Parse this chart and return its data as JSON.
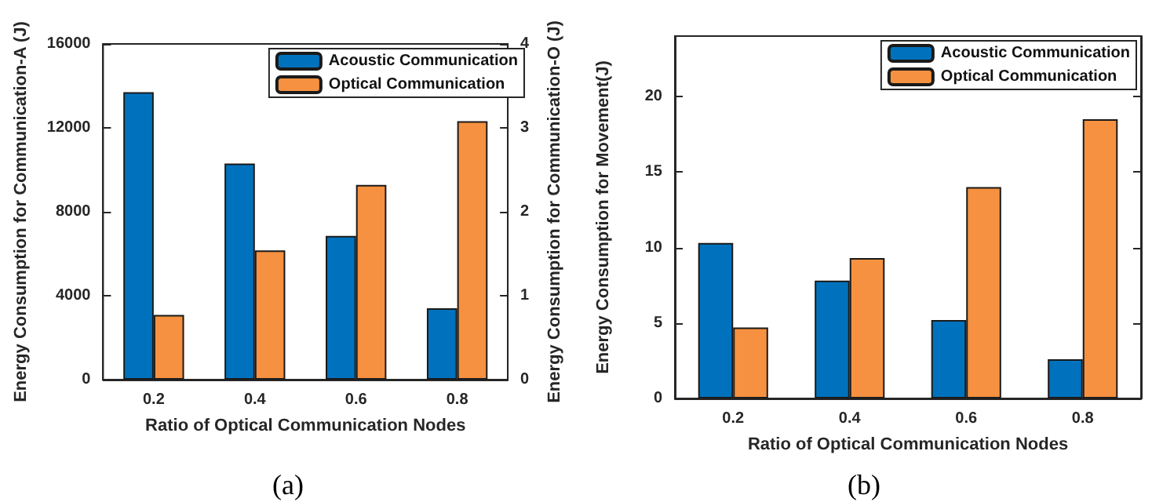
{
  "chart_data": [
    {
      "type": "bar",
      "categories": [
        "0.2",
        "0.4",
        "0.6",
        "0.8"
      ],
      "xlabel": "Ratio of Optical Communication Nodes",
      "ylabel": "Energy Consumption for Communication-A (J)",
      "y2label": "Energy Consumption for Communication-O (J)",
      "ylim": [
        0,
        16000
      ],
      "yticks": [
        0,
        4000,
        8000,
        12000,
        16000
      ],
      "y2lim": [
        0,
        4
      ],
      "y2ticks": [
        0,
        1,
        2,
        3,
        4
      ],
      "legend": "top right",
      "grid": false,
      "annotations": [
        "(a)"
      ],
      "series": [
        {
          "name": "Acoustic Communication",
          "color": "#0072bd",
          "values": [
            13700,
            10300,
            6850,
            3400
          ]
        },
        {
          "name": "Optical Communication",
          "color": "#f59140",
          "axis": "y2",
          "values": [
            0.77,
            1.54,
            2.32,
            3.08
          ]
        }
      ]
    },
    {
      "type": "bar",
      "categories": [
        "0.2",
        "0.4",
        "0.6",
        "0.8"
      ],
      "xlabel": "Ratio of Optical Communication Nodes",
      "ylabel": "Energy Consumption for Movement(J)",
      "ylim": [
        0,
        24
      ],
      "yticks": [
        0,
        5,
        10,
        15,
        20
      ],
      "legend": "top right",
      "grid": false,
      "annotations": [
        "(b)"
      ],
      "series": [
        {
          "name": "Acoustic Communication",
          "color": "#0072bd",
          "values": [
            10.3,
            7.8,
            5.2,
            2.6
          ]
        },
        {
          "name": "Optical Communication",
          "color": "#f59140",
          "values": [
            4.7,
            9.3,
            14,
            18.5
          ]
        }
      ]
    }
  ]
}
